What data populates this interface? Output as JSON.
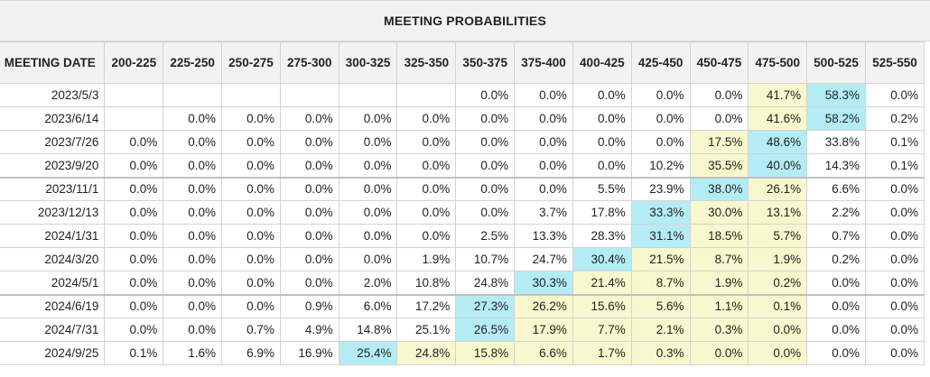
{
  "title": "MEETING PROBABILITIES",
  "headers": [
    "MEETING DATE",
    "200-225",
    "225-250",
    "250-275",
    "275-300",
    "300-325",
    "325-350",
    "350-375",
    "375-400",
    "400-425",
    "425-450",
    "450-475",
    "475-500",
    "500-525",
    "525-550"
  ],
  "rows": [
    {
      "date": "2023/5/3",
      "cells": [
        "",
        "",
        "",
        "",
        "",
        "",
        "0.0%",
        "0.0%",
        "0.0%",
        "0.0%",
        "0.0%",
        "41.7%",
        "58.3%",
        "0.0%"
      ]
    },
    {
      "date": "2023/6/14",
      "cells": [
        "",
        "0.0%",
        "0.0%",
        "0.0%",
        "0.0%",
        "0.0%",
        "0.0%",
        "0.0%",
        "0.0%",
        "0.0%",
        "0.0%",
        "41.6%",
        "58.2%",
        "0.2%"
      ]
    },
    {
      "date": "2023/7/26",
      "cells": [
        "0.0%",
        "0.0%",
        "0.0%",
        "0.0%",
        "0.0%",
        "0.0%",
        "0.0%",
        "0.0%",
        "0.0%",
        "0.0%",
        "17.5%",
        "48.6%",
        "33.8%",
        "0.1%"
      ]
    },
    {
      "date": "2023/9/20",
      "cells": [
        "0.0%",
        "0.0%",
        "0.0%",
        "0.0%",
        "0.0%",
        "0.0%",
        "0.0%",
        "0.0%",
        "0.0%",
        "10.2%",
        "35.5%",
        "40.0%",
        "14.3%",
        "0.1%"
      ]
    },
    {
      "date": "2023/11/1",
      "cells": [
        "0.0%",
        "0.0%",
        "0.0%",
        "0.0%",
        "0.0%",
        "0.0%",
        "0.0%",
        "0.0%",
        "5.5%",
        "23.9%",
        "38.0%",
        "26.1%",
        "6.6%",
        "0.0%"
      ]
    },
    {
      "date": "2023/12/13",
      "cells": [
        "0.0%",
        "0.0%",
        "0.0%",
        "0.0%",
        "0.0%",
        "0.0%",
        "0.0%",
        "3.7%",
        "17.8%",
        "33.3%",
        "30.0%",
        "13.1%",
        "2.2%",
        "0.0%"
      ]
    },
    {
      "date": "2024/1/31",
      "cells": [
        "0.0%",
        "0.0%",
        "0.0%",
        "0.0%",
        "0.0%",
        "0.0%",
        "2.5%",
        "13.3%",
        "28.3%",
        "31.1%",
        "18.5%",
        "5.7%",
        "0.7%",
        "0.0%"
      ]
    },
    {
      "date": "2024/3/20",
      "cells": [
        "0.0%",
        "0.0%",
        "0.0%",
        "0.0%",
        "0.0%",
        "1.9%",
        "10.7%",
        "24.7%",
        "30.4%",
        "21.5%",
        "8.7%",
        "1.9%",
        "0.2%",
        "0.0%"
      ]
    },
    {
      "date": "2024/5/1",
      "cells": [
        "0.0%",
        "0.0%",
        "0.0%",
        "0.0%",
        "2.0%",
        "10.8%",
        "24.8%",
        "30.3%",
        "21.4%",
        "8.7%",
        "1.9%",
        "0.2%",
        "0.0%",
        "0.0%"
      ]
    },
    {
      "date": "2024/6/19",
      "cells": [
        "0.0%",
        "0.0%",
        "0.0%",
        "0.9%",
        "6.0%",
        "17.2%",
        "27.3%",
        "26.2%",
        "15.6%",
        "5.6%",
        "1.1%",
        "0.1%",
        "0.0%",
        "0.0%"
      ]
    },
    {
      "date": "2024/7/31",
      "cells": [
        "0.0%",
        "0.0%",
        "0.7%",
        "4.9%",
        "14.8%",
        "25.1%",
        "26.5%",
        "17.9%",
        "7.7%",
        "2.1%",
        "0.3%",
        "0.0%",
        "0.0%",
        "0.0%"
      ]
    },
    {
      "date": "2024/9/25",
      "cells": [
        "0.1%",
        "1.6%",
        "6.9%",
        "16.9%",
        "25.4%",
        "24.8%",
        "15.8%",
        "6.6%",
        "1.7%",
        "0.3%",
        "0.0%",
        "0.0%",
        "0.0%",
        "0.0%"
      ]
    }
  ],
  "highlights": {
    "cyan": [
      [
        0,
        12
      ],
      [
        1,
        12
      ],
      [
        2,
        11
      ],
      [
        3,
        11
      ],
      [
        4,
        10
      ],
      [
        5,
        9
      ],
      [
        6,
        9
      ],
      [
        7,
        8
      ],
      [
        8,
        7
      ],
      [
        9,
        6
      ],
      [
        10,
        6
      ],
      [
        11,
        4
      ]
    ],
    "yellow": [
      [
        0,
        11
      ],
      [
        1,
        11
      ],
      [
        2,
        10
      ],
      [
        3,
        10
      ],
      [
        4,
        11
      ],
      [
        5,
        10
      ],
      [
        5,
        11
      ],
      [
        6,
        10
      ],
      [
        6,
        11
      ],
      [
        7,
        9
      ],
      [
        7,
        10
      ],
      [
        7,
        11
      ],
      [
        8,
        8
      ],
      [
        8,
        9
      ],
      [
        8,
        10
      ],
      [
        8,
        11
      ],
      [
        9,
        7
      ],
      [
        9,
        8
      ],
      [
        9,
        9
      ],
      [
        9,
        10
      ],
      [
        9,
        11
      ],
      [
        10,
        7
      ],
      [
        10,
        8
      ],
      [
        10,
        9
      ],
      [
        10,
        10
      ],
      [
        10,
        11
      ],
      [
        11,
        5
      ],
      [
        11,
        6
      ],
      [
        11,
        7
      ],
      [
        11,
        8
      ],
      [
        11,
        9
      ],
      [
        11,
        10
      ],
      [
        11,
        11
      ]
    ]
  },
  "group_separators": [
    4,
    9
  ],
  "colors": {
    "cyan": "#b4ecf5",
    "yellow": "#f8f7cd",
    "header_bg": "#f2f2f2",
    "border": "#d3d3d3"
  }
}
